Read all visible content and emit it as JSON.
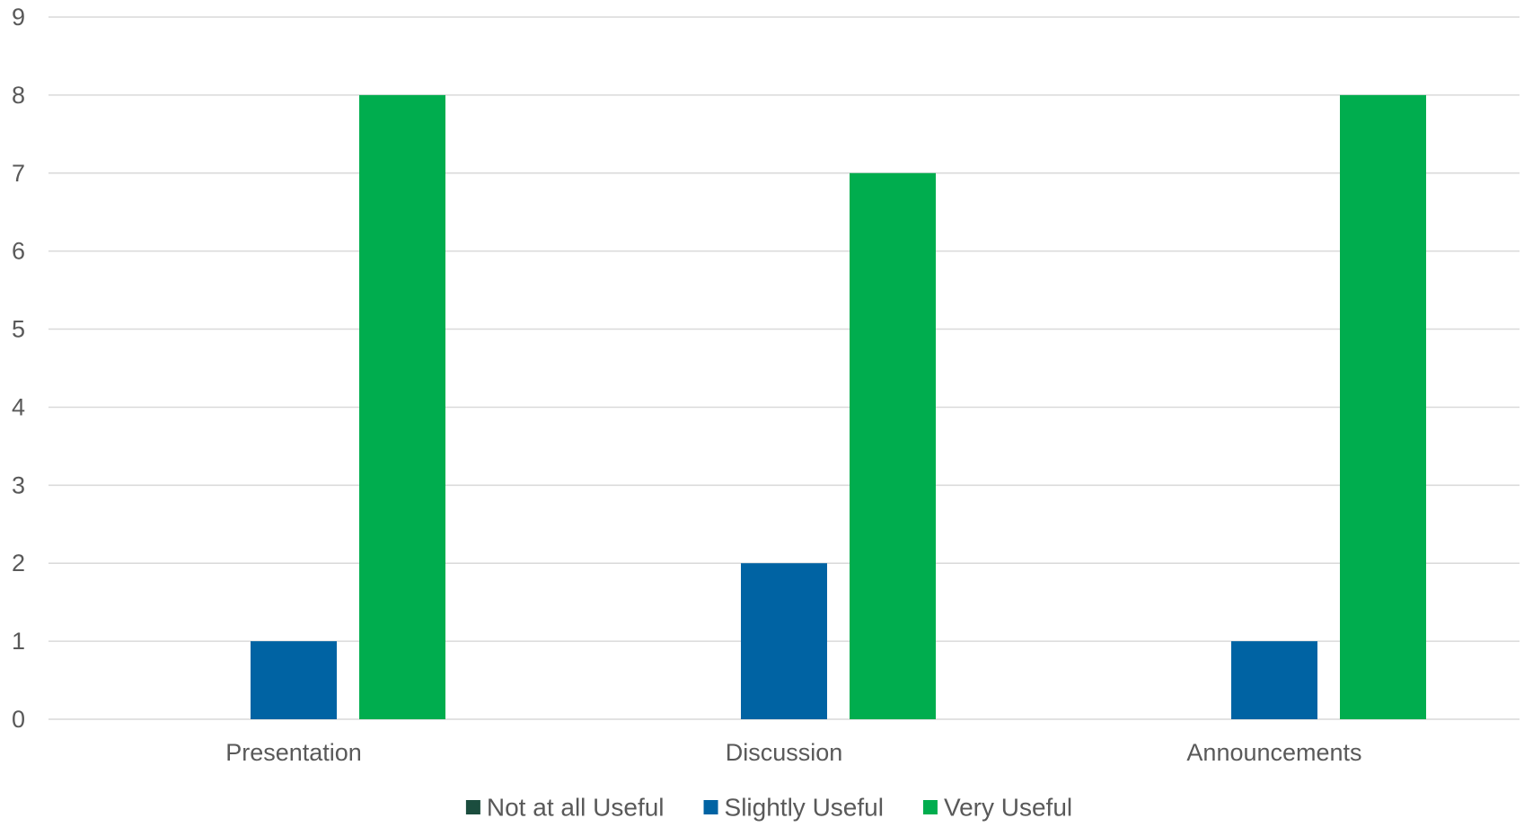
{
  "chart_data": {
    "type": "bar",
    "categories": [
      "Presentation",
      "Discussion",
      "Announcements"
    ],
    "series": [
      {
        "name": "Not at all Useful",
        "values": [
          0,
          0,
          0
        ],
        "color": "#1b4d3e"
      },
      {
        "name": "Slightly Useful",
        "values": [
          1,
          2,
          1
        ],
        "color": "#0063a3"
      },
      {
        "name": "Very Useful",
        "values": [
          8,
          7,
          8
        ],
        "color": "#00ad4e"
      }
    ],
    "ylim": [
      0,
      9
    ],
    "yticks": [
      0,
      1,
      2,
      3,
      4,
      5,
      6,
      7,
      8,
      9
    ],
    "grid": true,
    "legend_position": "bottom",
    "gridline_color": "#d9d9d9",
    "text_color": "#595959"
  }
}
